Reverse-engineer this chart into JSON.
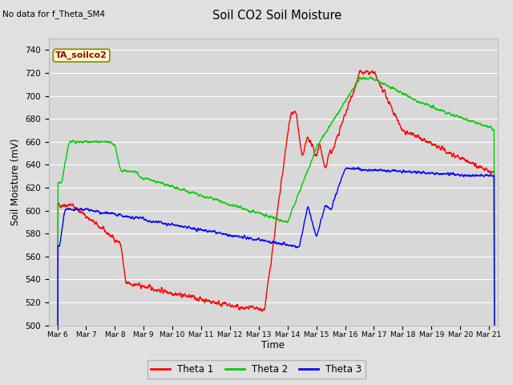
{
  "title": "Soil CO2 Soil Moisture",
  "ylabel": "Soil Moisture (mV)",
  "xlabel": "Time",
  "annotation_text": "No data for f_Theta_SM4",
  "legend_label": "TA_soilco2",
  "ylim": [
    500,
    750
  ],
  "yticks": [
    500,
    520,
    540,
    560,
    580,
    600,
    620,
    640,
    660,
    680,
    700,
    720,
    740
  ],
  "background_color": "#e0e0e0",
  "plot_bg_color": "#d8d8d8",
  "grid_color": "#ffffff",
  "line_colors": {
    "theta1": "#ff0000",
    "theta2": "#00cc00",
    "theta3": "#0000ff"
  },
  "legend_entries": [
    "Theta 1",
    "Theta 2",
    "Theta 3"
  ],
  "x_tick_labels": [
    "Mar 6",
    "Mar 7",
    "Mar 8",
    "Mar 9",
    "Mar 10",
    "Mar 11",
    "Mar 12",
    "Mar 13",
    "Mar 14",
    "Mar 15",
    "Mar 16",
    "Mar 17",
    "Mar 18",
    "Mar 19",
    "Mar 20",
    "Mar 21"
  ]
}
